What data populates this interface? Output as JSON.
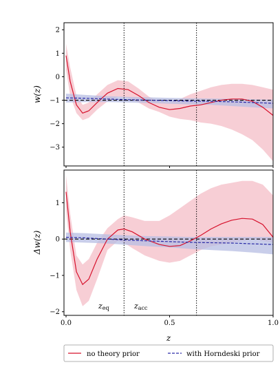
{
  "chart_data": {
    "type": "line",
    "shared_x": {
      "xlabel": "z",
      "xlim": [
        -0.01,
        1.0
      ],
      "xticks": [
        0.0,
        0.5,
        1.0
      ],
      "xtick_labels": [
        "0.0",
        "0.5",
        "1.0"
      ]
    },
    "vlines": [
      {
        "label": "z_eq",
        "x": 0.28
      },
      {
        "label": "z_acc",
        "x": 0.63
      }
    ],
    "legend": {
      "placement": "bottom",
      "entries": [
        {
          "label": "no theory prior",
          "color": "#d6102b",
          "style": "solid"
        },
        {
          "label": "with Horndeski prior",
          "color": "#2a2aa6",
          "style": "dashed"
        }
      ]
    },
    "panels": [
      {
        "ylabel": "w(z)",
        "ylim": [
          -3.8,
          2.3
        ],
        "yticks": [
          -3,
          -2,
          -1,
          0,
          1,
          2
        ],
        "ytick_labels": [
          "−3",
          "−2",
          "−1",
          "0",
          "1",
          "2"
        ],
        "hline": -1,
        "series": [
          {
            "name": "no theory prior",
            "color": "#d6102b",
            "band_color": "#f2b3bf",
            "x": [
              0.0,
              0.02,
              0.05,
              0.08,
              0.11,
              0.15,
              0.2,
              0.25,
              0.3,
              0.35,
              0.4,
              0.45,
              0.5,
              0.55,
              0.6,
              0.65,
              0.7,
              0.75,
              0.8,
              0.85,
              0.9,
              0.95,
              1.0
            ],
            "y": [
              0.9,
              -0.2,
              -1.2,
              -1.55,
              -1.45,
              -1.1,
              -0.7,
              -0.5,
              -0.55,
              -0.8,
              -1.1,
              -1.3,
              -1.4,
              -1.35,
              -1.25,
              -1.2,
              -1.1,
              -1.0,
              -0.95,
              -0.95,
              -1.05,
              -1.3,
              -1.65
            ],
            "lower": [
              0.3,
              -0.8,
              -1.55,
              -1.85,
              -1.75,
              -1.4,
              -1.05,
              -0.85,
              -0.9,
              -1.1,
              -1.35,
              -1.5,
              -1.7,
              -1.8,
              -1.85,
              -1.95,
              -2.0,
              -2.1,
              -2.25,
              -2.45,
              -2.7,
              -3.1,
              -3.6
            ],
            "upper": [
              1.4,
              0.4,
              -0.8,
              -1.2,
              -1.1,
              -0.75,
              -0.35,
              -0.15,
              -0.2,
              -0.5,
              -0.85,
              -1.05,
              -1.1,
              -0.95,
              -0.75,
              -0.6,
              -0.45,
              -0.35,
              -0.3,
              -0.3,
              -0.35,
              -0.45,
              -0.55
            ]
          },
          {
            "name": "with Horndeski prior",
            "color": "#2a2aa6",
            "band_color": "#b7bde3",
            "x": [
              0.0,
              0.1,
              0.2,
              0.3,
              0.4,
              0.5,
              0.6,
              0.7,
              0.8,
              0.9,
              1.0
            ],
            "y": [
              -0.9,
              -0.92,
              -0.95,
              -0.98,
              -1.0,
              -1.02,
              -1.04,
              -1.05,
              -1.07,
              -1.1,
              -1.13
            ],
            "lower": [
              -1.1,
              -1.08,
              -1.08,
              -1.1,
              -1.12,
              -1.15,
              -1.18,
              -1.2,
              -1.25,
              -1.3,
              -1.35
            ],
            "upper": [
              -0.72,
              -0.78,
              -0.83,
              -0.86,
              -0.88,
              -0.9,
              -0.92,
              -0.93,
              -0.94,
              -0.96,
              -0.98
            ]
          }
        ]
      },
      {
        "ylabel": "Δw(z)",
        "ylim": [
          -2.1,
          1.9
        ],
        "yticks": [
          -2,
          -1,
          0,
          1
        ],
        "ytick_labels": [
          "−2",
          "−1",
          "0",
          "1"
        ],
        "hline": 0,
        "series": [
          {
            "name": "no theory prior",
            "color": "#d6102b",
            "band_color": "#f2b3bf",
            "x": [
              0.0,
              0.02,
              0.05,
              0.08,
              0.11,
              0.15,
              0.2,
              0.25,
              0.28,
              0.32,
              0.38,
              0.45,
              0.5,
              0.55,
              0.6,
              0.65,
              0.7,
              0.75,
              0.8,
              0.85,
              0.9,
              0.95,
              1.0
            ],
            "y": [
              1.3,
              0.2,
              -0.9,
              -1.25,
              -1.1,
              -0.55,
              0.0,
              0.25,
              0.28,
              0.2,
              0.0,
              -0.15,
              -0.2,
              -0.18,
              -0.05,
              0.1,
              0.28,
              0.42,
              0.52,
              0.57,
              0.55,
              0.4,
              0.05
            ],
            "lower": [
              0.8,
              -0.3,
              -1.4,
              -1.85,
              -1.7,
              -1.1,
              -0.3,
              -0.05,
              -0.1,
              -0.25,
              -0.45,
              -0.6,
              -0.65,
              -0.6,
              -0.45,
              -0.3,
              -0.2,
              -0.15,
              -0.1,
              -0.05,
              0.0,
              -0.05,
              -0.1
            ],
            "upper": [
              1.75,
              0.7,
              -0.45,
              -0.7,
              -0.55,
              -0.1,
              0.3,
              0.55,
              0.65,
              0.6,
              0.5,
              0.5,
              0.65,
              0.85,
              1.05,
              1.25,
              1.4,
              1.5,
              1.55,
              1.6,
              1.6,
              1.5,
              1.2
            ]
          },
          {
            "name": "with Horndeski prior",
            "color": "#2a2aa6",
            "band_color": "#b7bde3",
            "x": [
              0.0,
              0.1,
              0.2,
              0.3,
              0.4,
              0.5,
              0.6,
              0.7,
              0.8,
              0.9,
              1.0
            ],
            "y": [
              0.05,
              0.03,
              0.0,
              -0.03,
              -0.05,
              -0.07,
              -0.09,
              -0.1,
              -0.11,
              -0.13,
              -0.15
            ],
            "lower": [
              -0.08,
              -0.1,
              -0.12,
              -0.16,
              -0.2,
              -0.23,
              -0.27,
              -0.3,
              -0.33,
              -0.37,
              -0.42
            ],
            "upper": [
              0.18,
              0.16,
              0.13,
              0.1,
              0.08,
              0.07,
              0.06,
              0.06,
              0.06,
              0.06,
              0.06
            ]
          }
        ]
      }
    ],
    "annotations": [
      {
        "text": "z_eq",
        "panel": 1
      },
      {
        "text": "z_acc",
        "panel": 1
      }
    ]
  }
}
